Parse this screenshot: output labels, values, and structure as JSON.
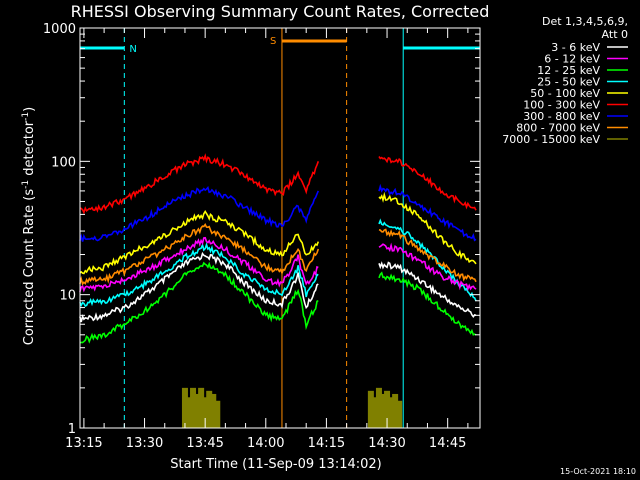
{
  "chart_data": {
    "type": "line",
    "title": "RHESSI Observing Summary Count Rates, Corrected",
    "xlabel": "Start Time (11-Sep-09 13:14:02)",
    "ylabel_main": "Corrected Count Rate (s",
    "ylabel_sup1": "-1",
    "ylabel_mid": " detector",
    "ylabel_sup2": "-1",
    "ylabel_end": ")",
    "y_scale": "log",
    "ylim": [
      1,
      1000
    ],
    "xlim": [
      "13:14:02",
      "14:53:00"
    ],
    "x_ticks": [
      "13:15",
      "13:30",
      "13:45",
      "14:00",
      "14:15",
      "14:30",
      "14:45"
    ],
    "y_ticks": [
      {
        "value": 1,
        "label": "1"
      },
      {
        "value": 10,
        "label": "10"
      },
      {
        "value": 100,
        "label": "100"
      },
      {
        "value": 1000,
        "label": "1000"
      }
    ],
    "legend_header": [
      "Det 1,3,4,5,6,9,",
      "Att 0"
    ],
    "legend_position": "top-right, outside plot",
    "series": [
      {
        "name": "3 - 6 keV",
        "color": "#ffffff",
        "x": [
          "13:14",
          "13:20",
          "13:25",
          "13:30",
          "13:35",
          "13:40",
          "13:45",
          "13:50",
          "13:55",
          "14:00",
          "14:04",
          "14:08",
          "14:10",
          "14:13",
          "14:26",
          "14:28",
          "14:33",
          "14:38",
          "14:43",
          "14:48",
          "14:52"
        ],
        "y": [
          6.5,
          7,
          8,
          10,
          13,
          17,
          20,
          17,
          12,
          9,
          8.5,
          14,
          8,
          12,
          null,
          17,
          16,
          13,
          10,
          8,
          7
        ]
      },
      {
        "name": "6 - 12 keV",
        "color": "#ff00ff",
        "x": [
          "13:14",
          "13:20",
          "13:25",
          "13:30",
          "13:35",
          "13:40",
          "13:45",
          "13:50",
          "13:55",
          "14:00",
          "14:04",
          "14:08",
          "14:10",
          "14:13",
          "14:26",
          "14:28",
          "14:33",
          "14:38",
          "14:43",
          "14:48",
          "14:52"
        ],
        "y": [
          11,
          11.5,
          13,
          15,
          18,
          22,
          26,
          22,
          17,
          13,
          12,
          19,
          12,
          16,
          null,
          23,
          22,
          18,
          14,
          12,
          11
        ]
      },
      {
        "name": "12 - 25 keV",
        "color": "#00ff00",
        "x": [
          "13:14",
          "13:20",
          "13:25",
          "13:30",
          "13:35",
          "13:40",
          "13:45",
          "13:50",
          "13:55",
          "14:00",
          "14:04",
          "14:08",
          "14:10",
          "14:13",
          "14:26",
          "14:28",
          "14:33",
          "14:38",
          "14:43",
          "14:48",
          "14:52"
        ],
        "y": [
          4.5,
          5,
          6,
          7.5,
          10,
          14,
          17,
          14,
          10,
          7,
          6.5,
          11,
          6,
          9,
          null,
          14,
          13,
          11,
          8,
          6,
          5
        ]
      },
      {
        "name": "25 - 50 keV",
        "color": "#00ffff",
        "x": [
          "13:14",
          "13:20",
          "13:25",
          "13:30",
          "13:35",
          "13:40",
          "13:45",
          "13:50",
          "13:55",
          "14:00",
          "14:04",
          "14:08",
          "14:10",
          "14:13",
          "14:26",
          "14:28",
          "14:33",
          "14:38",
          "14:43",
          "14:48",
          "14:52"
        ],
        "y": [
          8.5,
          9,
          10,
          12,
          15,
          19,
          23,
          19,
          14,
          11,
          10,
          16,
          10,
          14,
          null,
          35,
          32,
          24,
          17,
          12,
          9
        ]
      },
      {
        "name": "50 - 100 keV",
        "color": "#ffff00",
        "x": [
          "13:14",
          "13:20",
          "13:25",
          "13:30",
          "13:35",
          "13:40",
          "13:45",
          "13:50",
          "13:55",
          "14:00",
          "14:04",
          "14:08",
          "14:10",
          "14:13",
          "14:26",
          "14:28",
          "14:33",
          "14:38",
          "14:43",
          "14:48",
          "14:52"
        ],
        "y": [
          15,
          16,
          19,
          23,
          28,
          35,
          40,
          35,
          28,
          22,
          20,
          29,
          20,
          25,
          null,
          55,
          50,
          38,
          27,
          20,
          17
        ]
      },
      {
        "name": "100 - 300 keV",
        "color": "#ff0000",
        "x": [
          "13:14",
          "13:20",
          "13:25",
          "13:30",
          "13:35",
          "13:40",
          "13:45",
          "13:50",
          "13:55",
          "14:00",
          "14:04",
          "14:08",
          "14:10",
          "14:13",
          "14:26",
          "14:28",
          "14:33",
          "14:38",
          "14:43",
          "14:48",
          "14:52"
        ],
        "y": [
          43,
          45,
          52,
          62,
          78,
          95,
          105,
          95,
          78,
          62,
          57,
          80,
          62,
          100,
          null,
          105,
          100,
          80,
          62,
          50,
          43
        ]
      },
      {
        "name": "300 - 800 keV",
        "color": "#0000ff",
        "x": [
          "13:14",
          "13:20",
          "13:25",
          "13:30",
          "13:35",
          "13:40",
          "13:45",
          "13:50",
          "13:55",
          "14:00",
          "14:04",
          "14:08",
          "14:10",
          "14:13",
          "14:26",
          "14:28",
          "14:33",
          "14:38",
          "14:43",
          "14:48",
          "14:52"
        ],
        "y": [
          26,
          27,
          31,
          37,
          46,
          55,
          63,
          55,
          45,
          36,
          33,
          46,
          36,
          60,
          null,
          62,
          58,
          47,
          37,
          30,
          26
        ]
      },
      {
        "name": "800 - 7000 keV",
        "color": "#ff8c00",
        "x": [
          "13:14",
          "13:20",
          "13:25",
          "13:30",
          "13:35",
          "13:40",
          "13:45",
          "13:50",
          "13:55",
          "14:00",
          "14:04",
          "14:08",
          "14:10",
          "14:13",
          "14:26",
          "14:28",
          "14:33",
          "14:38",
          "14:43",
          "14:48",
          "14:52"
        ],
        "y": [
          12.5,
          13,
          15,
          18,
          22,
          27,
          32,
          27,
          21,
          16,
          15,
          22,
          15,
          22,
          null,
          30,
          28,
          22,
          17,
          14,
          12.5
        ]
      },
      {
        "name": "7000 - 15000 keV",
        "color": "#808000",
        "x": [
          "13:40",
          "13:41",
          "13:42",
          "13:43",
          "13:44",
          "13:45",
          "13:46",
          "13:47",
          "13:48",
          "14:26",
          "14:27",
          "14:28",
          "14:29",
          "14:30",
          "14:31",
          "14:32",
          "14:33"
        ],
        "y": [
          2,
          1.7,
          2,
          1.8,
          2,
          1.7,
          1.9,
          1.8,
          1.6,
          1.9,
          1.7,
          2,
          1.8,
          1.9,
          1.7,
          1.8,
          1.6
        ]
      }
    ],
    "annotations": {
      "night_intervals": [
        {
          "label": "N",
          "start": "13:14",
          "end": "13:25"
        },
        {
          "label": "",
          "start": "14:34",
          "end": "14:53"
        }
      ],
      "saa_interval": {
        "label": "S",
        "start": "14:04",
        "end": "14:20"
      },
      "markers": [
        {
          "time": "13:25",
          "style": "dashed",
          "color": "#00ffff"
        },
        {
          "time": "14:34",
          "style": "solid",
          "color": "#00ffff"
        },
        {
          "time": "14:53",
          "style": "dashed",
          "color": "#00ffff"
        },
        {
          "time": "14:04",
          "style": "solid",
          "color": "#ff8c00"
        },
        {
          "time": "14:20",
          "style": "dashed",
          "color": "#ff8c00"
        }
      ]
    }
  },
  "footer": {
    "timestamp": "15-Oct-2021 18:10"
  }
}
